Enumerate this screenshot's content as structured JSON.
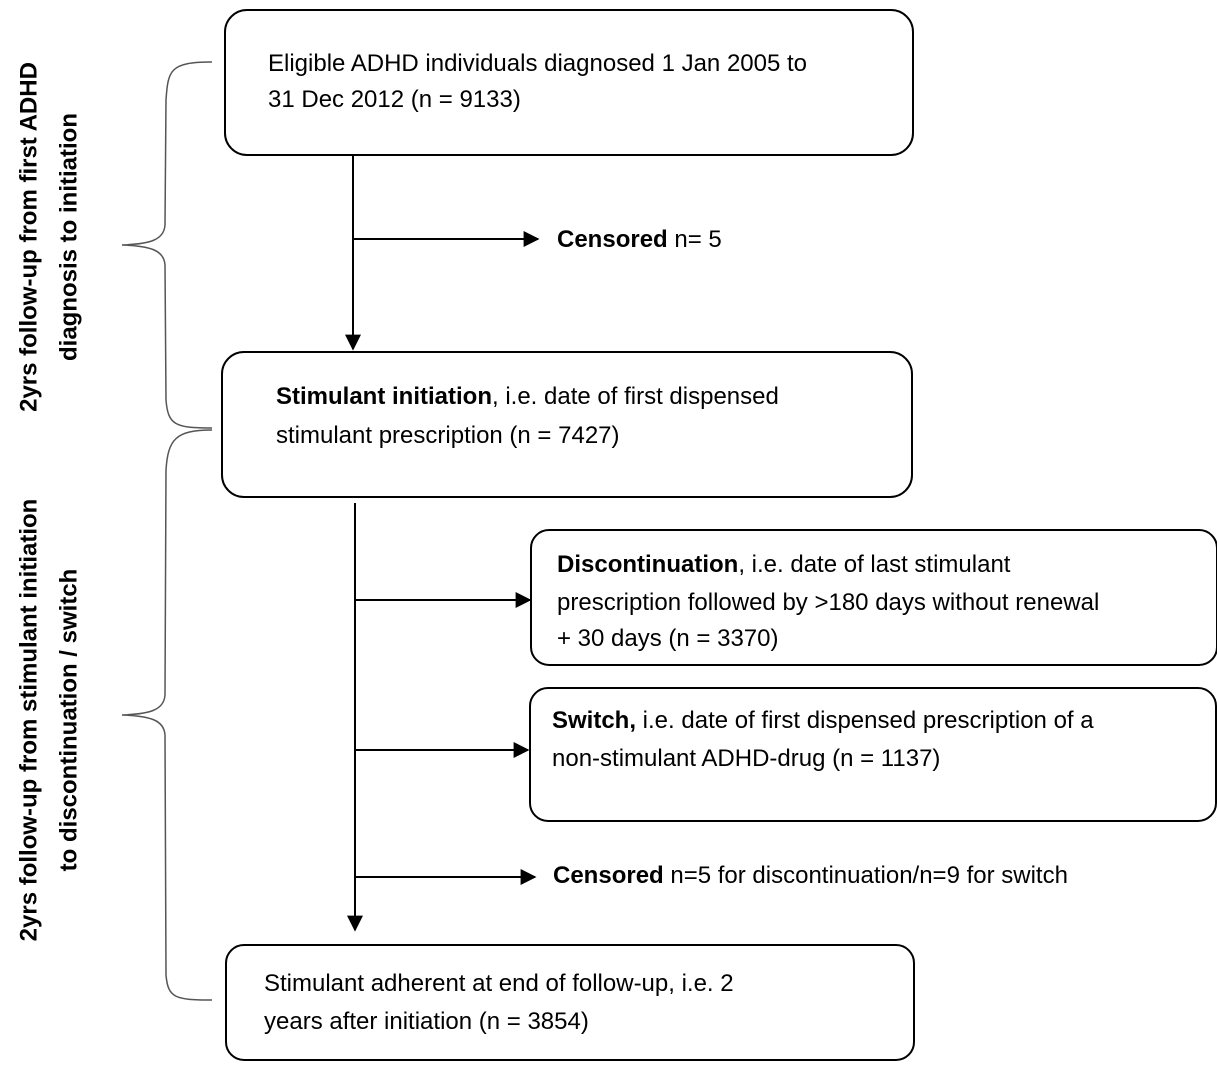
{
  "brackets": [
    {
      "lines": [
        "2yrs follow-up from first ADHD",
        "diagnosis to initiation"
      ]
    },
    {
      "lines": [
        "2yrs follow-up from stimulant initiation",
        "to discontinuation / switch"
      ]
    }
  ],
  "nodes": [
    {
      "bold": "",
      "lines": [
        "Eligible ADHD individuals diagnosed 1 Jan 2005 to",
        "31 Dec 2012 (n = 9133)"
      ]
    },
    {
      "bold": "Stimulant initiation",
      "lines": [
        ", i.e. date of first dispensed",
        "stimulant prescription (n = 7427)"
      ]
    },
    {
      "bold": "Discontinuation",
      "lines": [
        ", i.e. date of last stimulant",
        "prescription followed by >180 days without renewal",
        "+ 30 days (n = 3370)"
      ]
    },
    {
      "bold": "Switch,",
      "lines": [
        " i.e. date of first dispensed prescription of a",
        "non-stimulant ADHD-drug (n = 1137)"
      ]
    },
    {
      "bold": "",
      "lines": [
        "Stimulant adherent at end of follow-up, i.e. 2",
        "years after initiation (n = 3854)"
      ]
    }
  ],
  "censored": [
    {
      "bold": "Censored",
      "text": " n= 5"
    },
    {
      "bold": "Censored",
      "text": " n=5 for discontinuation/n=9 for switch"
    }
  ]
}
